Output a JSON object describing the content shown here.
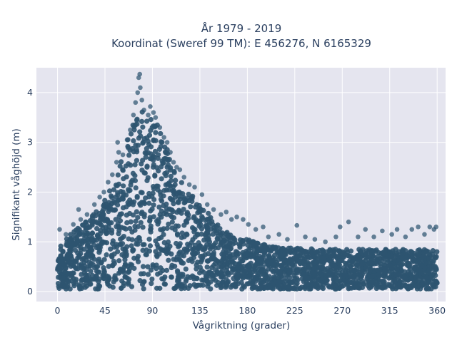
{
  "chart_data": {
    "type": "scatter",
    "title_lines": [
      "År 1979 - 2019",
      "Koordinat (Sweref 99 TM): E 456276, N 6165329"
    ],
    "xlabel": "Vågriktning (grader)",
    "ylabel": "Signifikant våghöjd (m)",
    "xlim": [
      -20,
      368
    ],
    "ylim": [
      -0.2,
      4.5
    ],
    "x_ticks": [
      0,
      45,
      90,
      135,
      180,
      225,
      270,
      315,
      360
    ],
    "y_ticks": [
      0,
      1,
      2,
      3,
      4
    ],
    "grid": true,
    "legend": "none",
    "colors": {
      "plot_background": "#e5e5ef",
      "grid": "#ffffff",
      "marker": "#2e5470"
    },
    "envelope": {
      "x": [
        0,
        10,
        20,
        30,
        40,
        50,
        55,
        60,
        65,
        70,
        75,
        80,
        85,
        90,
        95,
        100,
        105,
        110,
        120,
        130,
        140,
        150,
        160,
        170,
        180,
        190,
        200,
        210,
        220,
        240,
        260,
        280,
        300,
        320,
        340,
        360
      ],
      "ymin": [
        0.05,
        0.05,
        0.05,
        0.05,
        0.05,
        0.05,
        0.05,
        0.05,
        0.05,
        0.05,
        0.05,
        0.05,
        0.05,
        0.05,
        0.05,
        0.05,
        0.05,
        0.05,
        0.05,
        0.05,
        0.05,
        0.05,
        0.05,
        0.05,
        0.05,
        0.05,
        0.05,
        0.05,
        0.05,
        0.05,
        0.05,
        0.05,
        0.05,
        0.05,
        0.05,
        0.05
      ],
      "ymax": [
        0.9,
        1.1,
        1.3,
        1.5,
        1.7,
        2.05,
        2.3,
        2.6,
        2.95,
        3.3,
        3.55,
        3.65,
        3.55,
        3.5,
        3.35,
        3.05,
        2.85,
        2.55,
        2.15,
        1.9,
        1.65,
        1.4,
        1.2,
        1.1,
        1.05,
        0.97,
        0.93,
        0.9,
        0.88,
        0.86,
        0.85,
        0.85,
        0.85,
        0.85,
        0.85,
        0.85
      ]
    },
    "outliers": [
      {
        "x": 2,
        "y": 1.25
      },
      {
        "x": 8,
        "y": 1.15
      },
      {
        "x": 15,
        "y": 1.35
      },
      {
        "x": 20,
        "y": 1.65
      },
      {
        "x": 22,
        "y": 1.45
      },
      {
        "x": 28,
        "y": 1.55
      },
      {
        "x": 35,
        "y": 1.75
      },
      {
        "x": 40,
        "y": 1.9
      },
      {
        "x": 44,
        "y": 2.0
      },
      {
        "x": 48,
        "y": 2.2
      },
      {
        "x": 52,
        "y": 2.35
      },
      {
        "x": 56,
        "y": 2.6
      },
      {
        "x": 57,
        "y": 3.0
      },
      {
        "x": 58,
        "y": 2.8
      },
      {
        "x": 62,
        "y": 2.75
      },
      {
        "x": 66,
        "y": 3.05
      },
      {
        "x": 69,
        "y": 3.25
      },
      {
        "x": 72,
        "y": 3.55
      },
      {
        "x": 74,
        "y": 3.8
      },
      {
        "x": 76,
        "y": 4.0
      },
      {
        "x": 77,
        "y": 4.3
      },
      {
        "x": 78,
        "y": 4.37
      },
      {
        "x": 78.5,
        "y": 4.1
      },
      {
        "x": 80,
        "y": 3.85
      },
      {
        "x": 82,
        "y": 3.65
      },
      {
        "x": 86,
        "y": 3.55
      },
      {
        "x": 88,
        "y": 3.72
      },
      {
        "x": 91,
        "y": 3.6
      },
      {
        "x": 93,
        "y": 3.5
      },
      {
        "x": 97,
        "y": 3.3
      },
      {
        "x": 101,
        "y": 3.1
      },
      {
        "x": 104,
        "y": 3.0
      },
      {
        "x": 107,
        "y": 2.8
      },
      {
        "x": 110,
        "y": 2.6
      },
      {
        "x": 113,
        "y": 2.5
      },
      {
        "x": 116,
        "y": 2.45
      },
      {
        "x": 120,
        "y": 2.3
      },
      {
        "x": 125,
        "y": 2.15
      },
      {
        "x": 130,
        "y": 2.1
      },
      {
        "x": 137,
        "y": 1.95
      },
      {
        "x": 142,
        "y": 1.75
      },
      {
        "x": 148,
        "y": 1.65
      },
      {
        "x": 155,
        "y": 1.55
      },
      {
        "x": 160,
        "y": 1.6
      },
      {
        "x": 165,
        "y": 1.45
      },
      {
        "x": 170,
        "y": 1.5
      },
      {
        "x": 176,
        "y": 1.45
      },
      {
        "x": 181,
        "y": 1.35
      },
      {
        "x": 188,
        "y": 1.25
      },
      {
        "x": 195,
        "y": 1.3
      },
      {
        "x": 200,
        "y": 1.1
      },
      {
        "x": 210,
        "y": 1.15
      },
      {
        "x": 218,
        "y": 1.05
      },
      {
        "x": 227,
        "y": 1.33
      },
      {
        "x": 235,
        "y": 1.1
      },
      {
        "x": 244,
        "y": 1.05
      },
      {
        "x": 254,
        "y": 1.0
      },
      {
        "x": 264,
        "y": 1.1
      },
      {
        "x": 268,
        "y": 1.3
      },
      {
        "x": 276,
        "y": 1.4
      },
      {
        "x": 285,
        "y": 1.1
      },
      {
        "x": 292,
        "y": 1.25
      },
      {
        "x": 300,
        "y": 1.1
      },
      {
        "x": 308,
        "y": 1.22
      },
      {
        "x": 317,
        "y": 1.15
      },
      {
        "x": 322,
        "y": 1.25
      },
      {
        "x": 330,
        "y": 1.1
      },
      {
        "x": 336,
        "y": 1.25
      },
      {
        "x": 342,
        "y": 1.3
      },
      {
        "x": 348,
        "y": 1.15
      },
      {
        "x": 353,
        "y": 1.3
      },
      {
        "x": 357,
        "y": 1.25
      },
      {
        "x": 359,
        "y": 1.3
      }
    ]
  }
}
